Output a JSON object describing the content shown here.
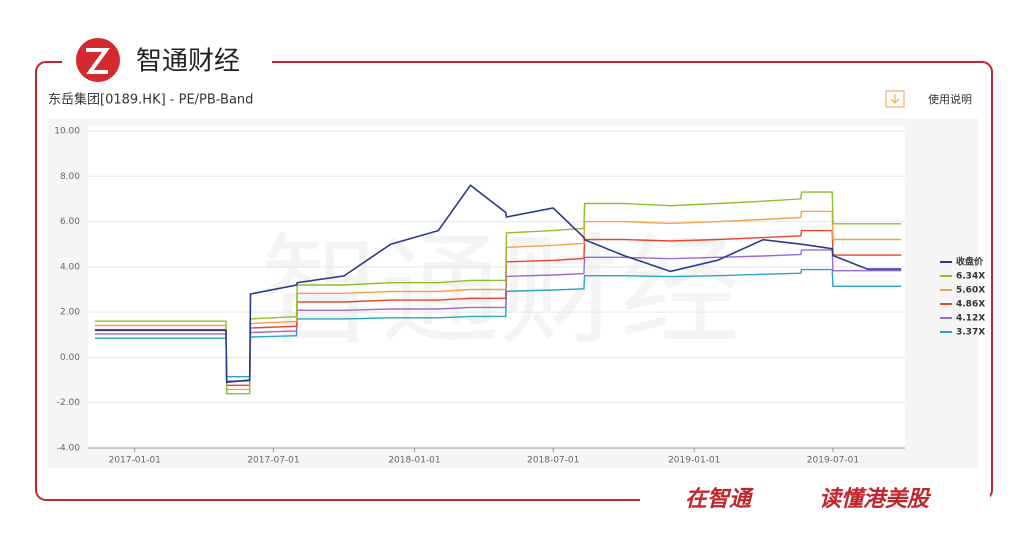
{
  "header": {
    "brand": "智通财经"
  },
  "toolbar": {
    "help": "使用说明"
  },
  "footer": {
    "slogan_1": "在智通",
    "slogan_2": "读懂港美股"
  },
  "chart_data": {
    "type": "line",
    "title": "东岳集团[0189.HK] - PE/PB-Band",
    "x": [
      "2016-11-10",
      "2017-01-01",
      "2017-03-01",
      "2017-04-30",
      "2017-05-01",
      "2017-05-31",
      "2017-06-01",
      "2017-07-31",
      "2017-08-01",
      "2017-10-01",
      "2017-12-01",
      "2018-02-01",
      "2018-03-15",
      "2018-04-30",
      "2018-05-01",
      "2018-07-01",
      "2018-08-10",
      "2018-08-11",
      "2018-10-01",
      "2018-12-01",
      "2019-02-01",
      "2019-04-01",
      "2019-05-20",
      "2019-05-21",
      "2019-06-30",
      "2019-07-01",
      "2019-08-15",
      "2019-09-28"
    ],
    "xlim": [
      "2016-11-01",
      "2019-10-03"
    ],
    "xticks": [
      "2017-01-01",
      "2017-07-01",
      "2018-01-01",
      "2018-07-01",
      "2019-01-01",
      "2019-07-01"
    ],
    "ylim": [
      -4,
      10
    ],
    "yticks": [
      {
        "value": -4,
        "label": "-4.00"
      },
      {
        "value": -2,
        "label": "-2.00"
      },
      {
        "value": 0,
        "label": "0.00"
      },
      {
        "value": 2,
        "label": "2.00"
      },
      {
        "value": 4,
        "label": "4.00"
      },
      {
        "value": 6,
        "label": "6.00"
      },
      {
        "value": 8,
        "label": "8.00"
      },
      {
        "value": 10,
        "label": "10.00"
      }
    ],
    "grid": true,
    "series": [
      {
        "name": "收盘价",
        "color": "#2b3a8c",
        "values": [
          1.2,
          1.2,
          1.2,
          1.2,
          -1.1,
          -1.0,
          2.8,
          3.2,
          3.3,
          3.6,
          5.0,
          5.6,
          7.6,
          6.4,
          6.2,
          6.6,
          5.3,
          5.2,
          4.5,
          3.8,
          4.3,
          5.2,
          5.0,
          5.0,
          4.8,
          4.5,
          3.9,
          3.9
        ]
      },
      {
        "name": "6.34X",
        "color": "#8fbf2a",
        "values": [
          1.6,
          1.6,
          1.6,
          1.6,
          -1.6,
          -1.6,
          1.7,
          1.8,
          3.2,
          3.2,
          3.3,
          3.3,
          3.4,
          3.4,
          5.5,
          5.6,
          5.7,
          6.8,
          6.8,
          6.7,
          6.8,
          6.9,
          7.0,
          7.3,
          7.3,
          5.9,
          5.9,
          5.9
        ]
      },
      {
        "name": "5.60X",
        "color": "#f5a04a",
        "values": [
          1.41,
          1.41,
          1.41,
          1.41,
          -1.41,
          -1.41,
          1.5,
          1.59,
          2.83,
          2.83,
          2.91,
          2.91,
          3.0,
          3.0,
          4.86,
          4.95,
          5.03,
          6.0,
          6.0,
          5.92,
          6.0,
          6.09,
          6.18,
          6.45,
          6.45,
          5.21,
          5.21,
          5.21
        ]
      },
      {
        "name": "4.86X",
        "color": "#e8452e",
        "values": [
          1.23,
          1.23,
          1.23,
          1.23,
          -1.23,
          -1.23,
          1.3,
          1.38,
          2.45,
          2.45,
          2.53,
          2.53,
          2.61,
          2.61,
          4.22,
          4.29,
          4.37,
          5.21,
          5.21,
          5.14,
          5.21,
          5.29,
          5.37,
          5.6,
          5.6,
          4.52,
          4.52,
          4.52
        ]
      },
      {
        "name": "4.12X",
        "color": "#9b6ad6",
        "values": [
          1.04,
          1.04,
          1.04,
          1.04,
          -1.04,
          -1.04,
          1.1,
          1.17,
          2.08,
          2.08,
          2.14,
          2.14,
          2.21,
          2.21,
          3.58,
          3.64,
          3.7,
          4.42,
          4.42,
          4.36,
          4.42,
          4.48,
          4.55,
          4.75,
          4.75,
          3.83,
          3.83,
          3.83
        ]
      },
      {
        "name": "3.37X",
        "color": "#2aa5c0",
        "values": [
          0.85,
          0.85,
          0.85,
          0.85,
          -0.85,
          -0.85,
          0.9,
          0.96,
          1.7,
          1.7,
          1.75,
          1.75,
          1.81,
          1.81,
          2.92,
          2.98,
          3.03,
          3.61,
          3.61,
          3.57,
          3.61,
          3.67,
          3.72,
          3.88,
          3.88,
          3.14,
          3.14,
          3.14
        ]
      }
    ]
  }
}
